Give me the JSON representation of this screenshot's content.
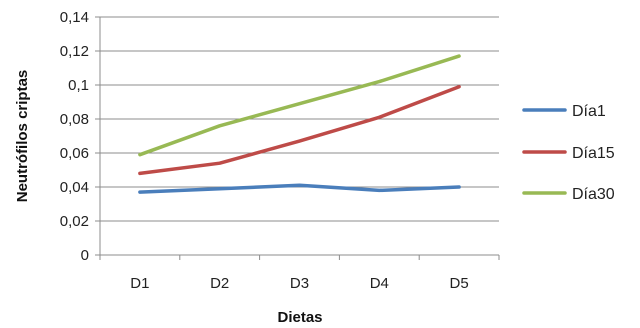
{
  "chart_data": {
    "type": "line",
    "title": "",
    "xlabel": "Dietas",
    "ylabel": "Neutrófilos criptas",
    "categories": [
      "D1",
      "D2",
      "D3",
      "D4",
      "D5"
    ],
    "ylim": [
      0,
      0.14
    ],
    "yticks": [
      "0",
      "0,02",
      "0,04",
      "0,06",
      "0,08",
      "0,1",
      "0,12",
      "0,14"
    ],
    "ytick_values": [
      0,
      0.02,
      0.04,
      0.06,
      0.08,
      0.1,
      0.12,
      0.14
    ],
    "grid": true,
    "legend_position": "right",
    "series": [
      {
        "name": "Día1",
        "color": "#4a7ebb",
        "values": [
          0.037,
          0.039,
          0.041,
          0.038,
          0.04
        ]
      },
      {
        "name": "Día15",
        "color": "#be4b48",
        "values": [
          0.048,
          0.054,
          0.067,
          0.081,
          0.099
        ]
      },
      {
        "name": "Día30",
        "color": "#98b954",
        "values": [
          0.059,
          0.076,
          0.089,
          0.102,
          0.117
        ]
      }
    ]
  }
}
